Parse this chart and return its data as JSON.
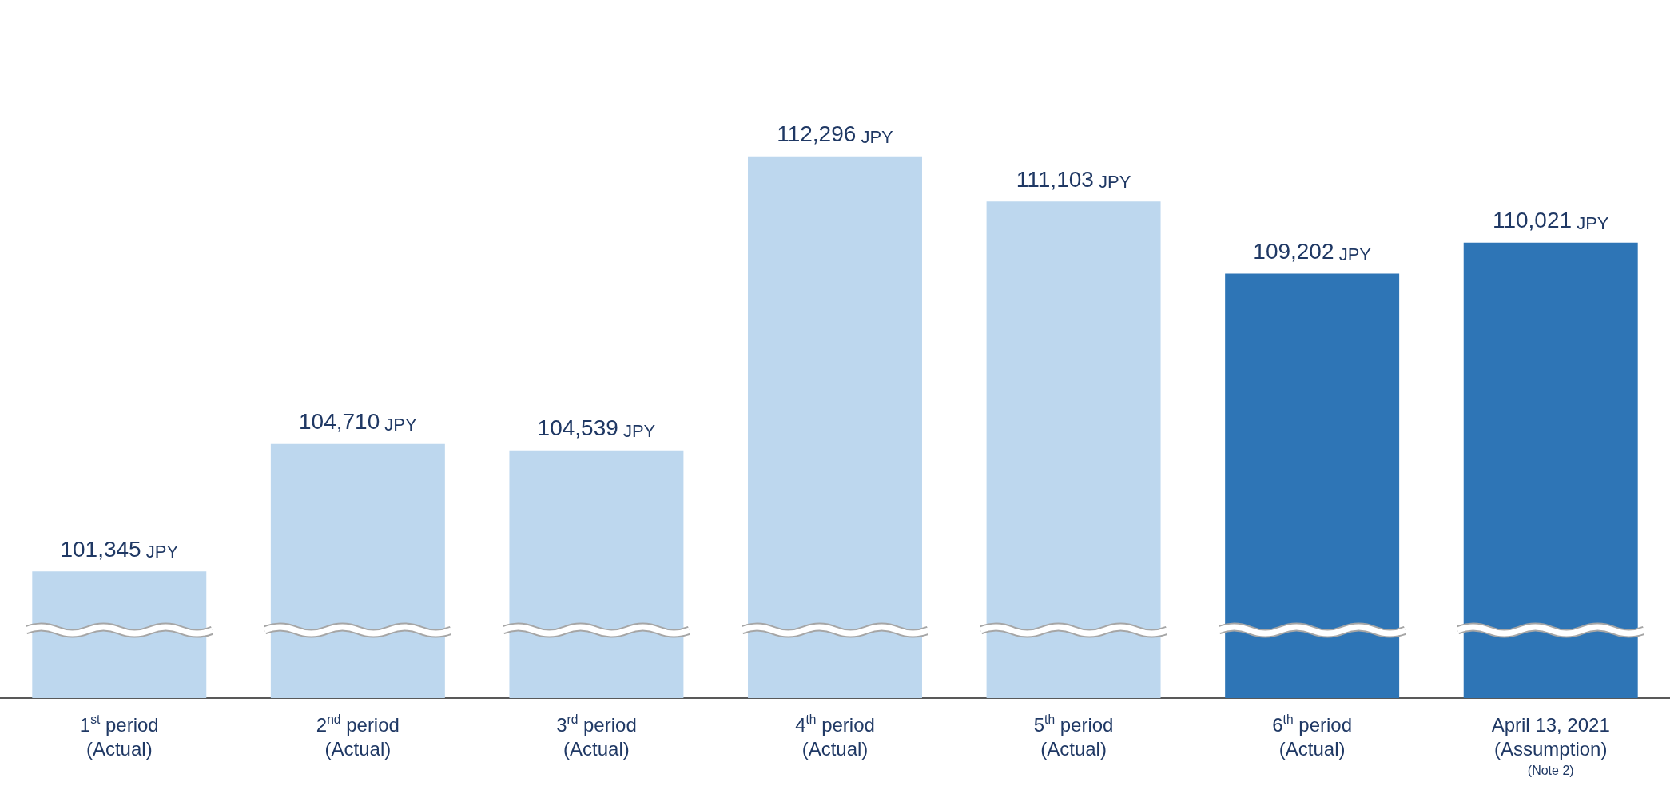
{
  "chart_data": {
    "type": "bar",
    "categories": [
      "1$^{st}$ period\n(Actual)",
      "2$^{nd}$ period\n(Actual)",
      "3$^{rd}$ period\n(Actual)",
      "4$^{th}$ period\n(Actual)",
      "5$^{th}$ period\n(Actual)",
      "6$^{th}$ period\n(Actual)",
      "April 13, 2021\n(Assumption)\n(Note 2)"
    ],
    "values": [
      101345,
      104710,
      104539,
      112296,
      111103,
      109202,
      110021
    ],
    "colors": [
      "#bdd7ee",
      "#bdd7ee",
      "#bdd7ee",
      "#bdd7ee",
      "#bdd7ee",
      "#2e75b6",
      "#2e75b6"
    ],
    "value_labels": [
      "101,345 JPY",
      "104,710 JPY",
      "104,539 JPY",
      "112,296 JPY",
      "111,103 JPY",
      "109,202 JPY",
      "110,021 JPY"
    ],
    "tick_labels": "x",
    "grid": false,
    "legend": false
  }
}
